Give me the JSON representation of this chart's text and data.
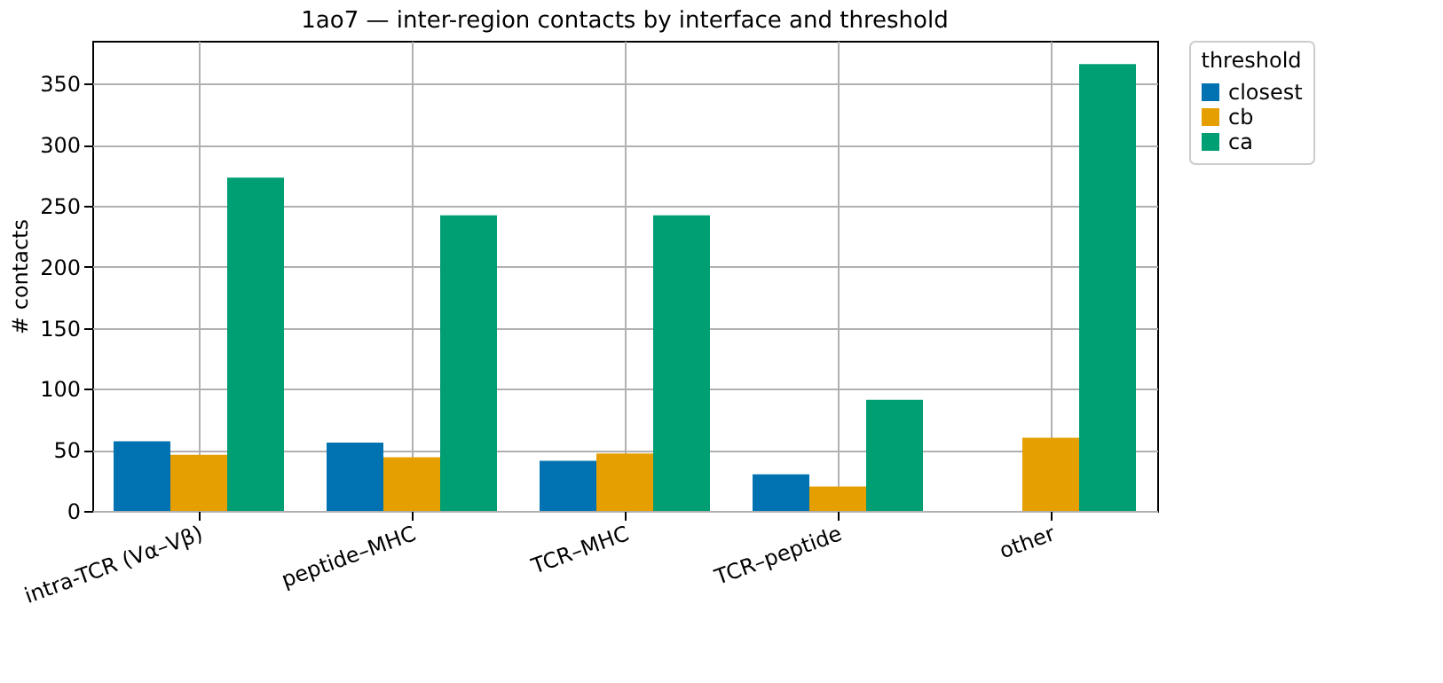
{
  "chart_data": {
    "type": "bar",
    "title": "1ao7 — inter-region contacts by interface and threshold",
    "ylabel": "# contacts",
    "legend_title": "threshold",
    "categories": [
      "intra-TCR (Vα–Vβ)",
      "peptide–MHC",
      "TCR–MHC",
      "TCR–peptide",
      "other"
    ],
    "series": [
      {
        "name": "closest",
        "color": "#0072b2",
        "values": [
          57,
          56,
          41,
          30,
          0
        ]
      },
      {
        "name": "cb",
        "color": "#e69f00",
        "values": [
          46,
          44,
          47,
          20,
          60
        ]
      },
      {
        "name": "ca",
        "color": "#009e73",
        "values": [
          273,
          242,
          242,
          91,
          366
        ]
      }
    ],
    "ylim": [
      0,
      385
    ],
    "yticks": [
      0,
      50,
      100,
      150,
      200,
      250,
      300,
      350
    ],
    "grid": true,
    "legend": "top right"
  }
}
